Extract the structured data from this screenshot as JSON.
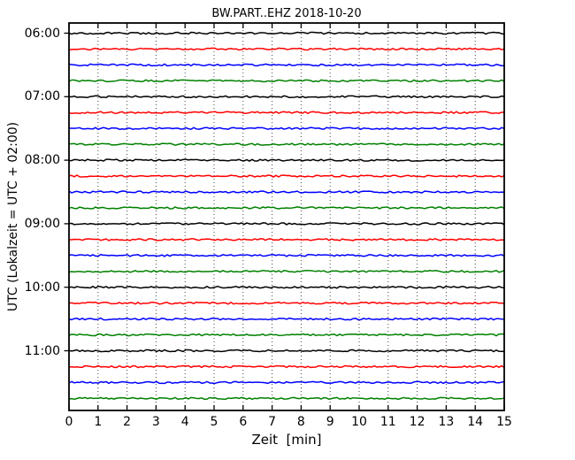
{
  "title": "BW.PART..EHZ 2018-10-20",
  "xlabel": "Zeit  [min]",
  "ylabel": "UTC (Lokalzeit = UTC + 02:00)",
  "colors": {
    "background": "#ffffff",
    "frame": "#000000",
    "gridline": "#444444",
    "tick": "#000000"
  },
  "chart_data": {
    "type": "line",
    "subtype": "seismogram-dayplot",
    "title": "BW.PART..EHZ 2018-10-20",
    "xlabel": "Zeit  [min]",
    "ylabel": "UTC (Lokalzeit = UTC + 02:00)",
    "xlim": [
      0,
      15
    ],
    "minutes_per_line": 15,
    "x_tick_labels": [
      "0",
      "1",
      "2",
      "3",
      "4",
      "5",
      "6",
      "7",
      "8",
      "9",
      "10",
      "11",
      "12",
      "13",
      "14",
      "15"
    ],
    "y_tick_labels": [
      "06:00",
      "07:00",
      "08:00",
      "09:00",
      "10:00",
      "11:00"
    ],
    "grid": {
      "vertical_dotted": true,
      "horizontal": false
    },
    "legend": "none",
    "trace_color_cycle": [
      "#000000",
      "#ff0000",
      "#0000ff",
      "#008000"
    ],
    "signal_note": "all 24 traces are flat background noise at zero amplitude, no visible events",
    "traces": [
      {
        "utc": "06:00",
        "color": "#000000",
        "amplitude": 0
      },
      {
        "utc": "06:15",
        "color": "#ff0000",
        "amplitude": 0
      },
      {
        "utc": "06:30",
        "color": "#0000ff",
        "amplitude": 0
      },
      {
        "utc": "06:45",
        "color": "#008000",
        "amplitude": 0
      },
      {
        "utc": "07:00",
        "color": "#000000",
        "amplitude": 0
      },
      {
        "utc": "07:15",
        "color": "#ff0000",
        "amplitude": 0
      },
      {
        "utc": "07:30",
        "color": "#0000ff",
        "amplitude": 0
      },
      {
        "utc": "07:45",
        "color": "#008000",
        "amplitude": 0
      },
      {
        "utc": "08:00",
        "color": "#000000",
        "amplitude": 0
      },
      {
        "utc": "08:15",
        "color": "#ff0000",
        "amplitude": 0
      },
      {
        "utc": "08:30",
        "color": "#0000ff",
        "amplitude": 0
      },
      {
        "utc": "08:45",
        "color": "#008000",
        "amplitude": 0
      },
      {
        "utc": "09:00",
        "color": "#000000",
        "amplitude": 0
      },
      {
        "utc": "09:15",
        "color": "#ff0000",
        "amplitude": 0
      },
      {
        "utc": "09:30",
        "color": "#0000ff",
        "amplitude": 0
      },
      {
        "utc": "09:45",
        "color": "#008000",
        "amplitude": 0
      },
      {
        "utc": "10:00",
        "color": "#000000",
        "amplitude": 0
      },
      {
        "utc": "10:15",
        "color": "#ff0000",
        "amplitude": 0
      },
      {
        "utc": "10:30",
        "color": "#0000ff",
        "amplitude": 0
      },
      {
        "utc": "10:45",
        "color": "#008000",
        "amplitude": 0
      },
      {
        "utc": "11:00",
        "color": "#000000",
        "amplitude": 0
      },
      {
        "utc": "11:15",
        "color": "#ff0000",
        "amplitude": 0
      },
      {
        "utc": "11:30",
        "color": "#0000ff",
        "amplitude": 0
      },
      {
        "utc": "11:45",
        "color": "#008000",
        "amplitude": 0
      }
    ]
  }
}
